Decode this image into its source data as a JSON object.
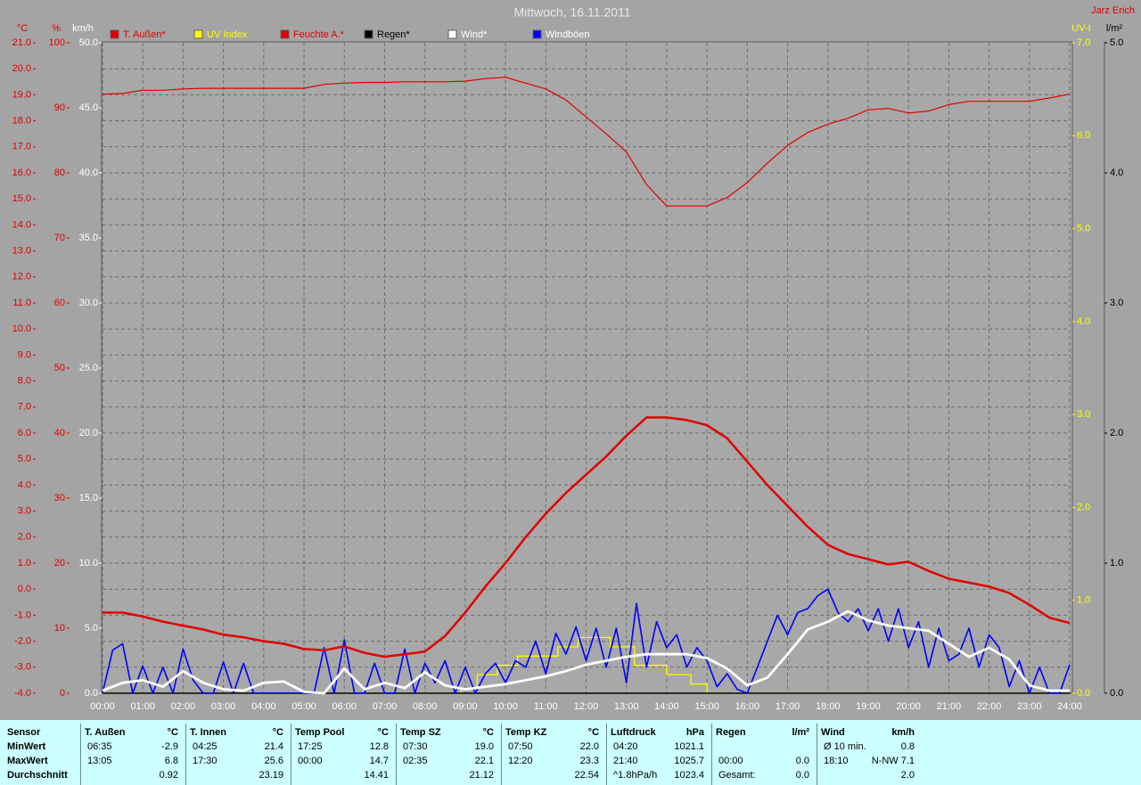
{
  "chart_data": {
    "type": "line",
    "title": "Mittwoch, 16.11.2011",
    "author": "Jarz Erich",
    "grid": true,
    "xlim": [
      0,
      24
    ],
    "xticks": [
      {
        "value": 0,
        "label": "00:00"
      },
      {
        "value": 1,
        "label": "01:00"
      },
      {
        "value": 2,
        "label": "02:00"
      },
      {
        "value": 3,
        "label": "03:00"
      },
      {
        "value": 4,
        "label": "04:00"
      },
      {
        "value": 5,
        "label": "05:00"
      },
      {
        "value": 6,
        "label": "06:00"
      },
      {
        "value": 7,
        "label": "07:00"
      },
      {
        "value": 8,
        "label": "08:00"
      },
      {
        "value": 9,
        "label": "09:00"
      },
      {
        "value": 10,
        "label": "10:00"
      },
      {
        "value": 11,
        "label": "11:00"
      },
      {
        "value": 12,
        "label": "12:00"
      },
      {
        "value": 13,
        "label": "13:00"
      },
      {
        "value": 14,
        "label": "14:00"
      },
      {
        "value": 15,
        "label": "15:00"
      },
      {
        "value": 16,
        "label": "16:00"
      },
      {
        "value": 17,
        "label": "17:00"
      },
      {
        "value": 18,
        "label": "18:00"
      },
      {
        "value": 19,
        "label": "19:00"
      },
      {
        "value": 20,
        "label": "20:00"
      },
      {
        "value": 21,
        "label": "21:00"
      },
      {
        "value": 22,
        "label": "22:00"
      },
      {
        "value": 23,
        "label": "23:00"
      },
      {
        "value": 24,
        "label": "24:00"
      }
    ],
    "axes": {
      "temp": {
        "label": "°C",
        "color": "#e00000",
        "lim": [
          -4,
          21
        ],
        "ticks": [
          {
            "value": -4,
            "label": "-4.0"
          },
          {
            "value": -3,
            "label": "-3.0"
          },
          {
            "value": -2,
            "label": "-2.0"
          },
          {
            "value": -1,
            "label": "-1.0"
          },
          {
            "value": 0,
            "label": "0.0"
          },
          {
            "value": 1,
            "label": "1.0"
          },
          {
            "value": 2,
            "label": "2.0"
          },
          {
            "value": 3,
            "label": "3.0"
          },
          {
            "value": 4,
            "label": "4.0"
          },
          {
            "value": 5,
            "label": "5.0"
          },
          {
            "value": 6,
            "label": "6.0"
          },
          {
            "value": 7,
            "label": "7.0"
          },
          {
            "value": 8,
            "label": "8.0"
          },
          {
            "value": 9,
            "label": "9.0"
          },
          {
            "value": 10,
            "label": "10.0"
          },
          {
            "value": 11,
            "label": "11.0"
          },
          {
            "value": 12,
            "label": "12.0"
          },
          {
            "value": 13,
            "label": "13.0"
          },
          {
            "value": 14,
            "label": "14.0"
          },
          {
            "value": 15,
            "label": "15.0"
          },
          {
            "value": 16,
            "label": "16.0"
          },
          {
            "value": 17,
            "label": "17.0"
          },
          {
            "value": 18,
            "label": "18.0"
          },
          {
            "value": 19,
            "label": "19.0"
          },
          {
            "value": 20,
            "label": "20.0"
          },
          {
            "value": 21,
            "label": "21.0"
          }
        ]
      },
      "hum": {
        "label": "%",
        "color": "#e00000",
        "lim": [
          0,
          100
        ],
        "ticks": [
          0,
          10,
          20,
          30,
          40,
          50,
          60,
          70,
          80,
          90,
          100
        ]
      },
      "wind": {
        "label": "km/h",
        "color": "#ffffff",
        "lim": [
          0,
          50
        ],
        "ticks": [
          {
            "value": 0,
            "label": "0.0"
          },
          {
            "value": 5,
            "label": "5.0"
          },
          {
            "value": 10,
            "label": "10.0"
          },
          {
            "value": 15,
            "label": "15.0"
          },
          {
            "value": 20,
            "label": "20.0"
          },
          {
            "value": 25,
            "label": "25.0"
          },
          {
            "value": 30,
            "label": "30.0"
          },
          {
            "value": 35,
            "label": "35.0"
          },
          {
            "value": 40,
            "label": "40.0"
          },
          {
            "value": 45,
            "label": "45.0"
          },
          {
            "value": 50,
            "label": "50.0"
          }
        ]
      },
      "uv": {
        "label": "UV-I",
        "color": "#ffff00",
        "lim": [
          0,
          7
        ],
        "ticks": [
          {
            "value": 0,
            "label": "0.0"
          },
          {
            "value": 1,
            "label": "1.0"
          },
          {
            "value": 2,
            "label": "2.0"
          },
          {
            "value": 3,
            "label": "3.0"
          },
          {
            "value": 4,
            "label": "4.0"
          },
          {
            "value": 5,
            "label": "5.0"
          },
          {
            "value": 6,
            "label": "6.0"
          },
          {
            "value": 7,
            "label": "7.0"
          }
        ]
      },
      "rain": {
        "label": "l/m²",
        "color": "#000000",
        "lim": [
          0,
          5
        ],
        "ticks": [
          {
            "value": 0,
            "label": "0.0"
          },
          {
            "value": 1,
            "label": "1.0"
          },
          {
            "value": 2,
            "label": "2.0"
          },
          {
            "value": 3,
            "label": "3.0"
          },
          {
            "value": 4,
            "label": "4.0"
          },
          {
            "value": 5,
            "label": "5.0"
          }
        ]
      }
    },
    "series": [
      {
        "name": "T. Außen*",
        "color": "#e00000",
        "label_color": "#e00000",
        "axis": "temp",
        "x": [
          0,
          0.5,
          1,
          1.5,
          2,
          2.5,
          3,
          3.5,
          4,
          4.5,
          5,
          5.5,
          6,
          6.5,
          7,
          7.5,
          8,
          8.5,
          9,
          9.5,
          10,
          10.5,
          11,
          11.5,
          12,
          12.5,
          13,
          13.5,
          14,
          14.5,
          15,
          15.5,
          16,
          16.5,
          17,
          17.5,
          18,
          18.5,
          19,
          19.5,
          20,
          20.5,
          21,
          21.5,
          22,
          22.5,
          23,
          23.5,
          24
        ],
        "values": [
          -0.9,
          -0.9,
          -1.05,
          -1.25,
          -1.4,
          -1.55,
          -1.75,
          -1.85,
          -2.0,
          -2.1,
          -2.3,
          -2.35,
          -2.2,
          -2.45,
          -2.6,
          -2.5,
          -2.4,
          -1.8,
          -0.9,
          0.1,
          1.0,
          2.0,
          2.9,
          3.7,
          4.4,
          5.1,
          5.9,
          6.6,
          6.6,
          6.5,
          6.3,
          5.8,
          4.9,
          4.0,
          3.2,
          2.4,
          1.7,
          1.35,
          1.15,
          0.95,
          1.05,
          0.7,
          0.4,
          0.25,
          0.1,
          -0.15,
          -0.6,
          -1.1,
          -1.3
        ]
      },
      {
        "name": "UV Index",
        "color": "#ffff00",
        "label_color": "#ffff00",
        "axis": "uv",
        "x": [
          0,
          8.9,
          8.9,
          9.3,
          9.3,
          9.8,
          9.8,
          10.3,
          10.3,
          11.3,
          11.3,
          11.8,
          11.8,
          12.6,
          12.6,
          13.2,
          13.2,
          14.0,
          14.0,
          14.6,
          14.6,
          15.0,
          15.0,
          24
        ],
        "values": [
          0,
          0,
          0.05,
          0.05,
          0.2,
          0.2,
          0.3,
          0.3,
          0.4,
          0.4,
          0.5,
          0.5,
          0.6,
          0.6,
          0.5,
          0.5,
          0.3,
          0.3,
          0.2,
          0.2,
          0.1,
          0.1,
          0,
          0
        ]
      },
      {
        "name": "Feuchte A.*",
        "color": "#e00000",
        "label_color": "#e00000",
        "axis": "hum",
        "x": [
          0,
          0.5,
          1,
          1.5,
          2,
          2.5,
          3,
          3.5,
          4,
          4.5,
          5,
          5.5,
          6,
          6.5,
          7,
          7.5,
          8,
          8.5,
          9,
          9.5,
          10,
          10.5,
          11,
          11.5,
          12,
          12.5,
          13,
          13.5,
          14,
          14.5,
          15,
          15.5,
          16,
          16.5,
          17,
          17.5,
          18,
          18.5,
          19,
          19.5,
          20,
          20.5,
          21,
          21.5,
          22,
          22.5,
          23,
          23.5,
          24
        ],
        "values": [
          92.1,
          92.2,
          92.7,
          92.7,
          92.9,
          93.0,
          93.0,
          93.0,
          93.0,
          93.0,
          93.0,
          93.6,
          93.8,
          93.9,
          93.9,
          94.0,
          94.0,
          94.0,
          94.1,
          94.5,
          94.7,
          93.8,
          92.9,
          91.2,
          88.6,
          86.0,
          83.2,
          78.2,
          74.9,
          74.9,
          74.9,
          76.2,
          78.5,
          81.5,
          84.2,
          86.2,
          87.5,
          88.4,
          89.7,
          89.9,
          89.2,
          89.5,
          90.5,
          91.0,
          91.0,
          91.0,
          91.0,
          91.5,
          92.1
        ]
      },
      {
        "name": "Regen*",
        "color": "#000000",
        "label_color": "#000000",
        "axis": "rain",
        "x": [
          0,
          24
        ],
        "values": [
          0,
          0
        ]
      },
      {
        "name": "Wind*",
        "color": "#ffffff",
        "label_color": "#ffffff",
        "axis": "wind",
        "x": [
          0,
          0.5,
          1,
          1.5,
          2,
          2.5,
          3,
          3.5,
          4,
          4.5,
          5,
          5.5,
          6,
          6.5,
          7,
          7.5,
          8,
          8.5,
          9,
          9.5,
          10,
          10.5,
          11,
          11.5,
          12,
          12.5,
          13,
          13.5,
          14,
          14.5,
          15,
          15.5,
          16,
          16.5,
          17,
          17.5,
          18,
          18.5,
          19,
          19.5,
          20,
          20.5,
          21,
          21.5,
          22,
          22.5,
          23,
          23.5,
          24
        ],
        "values": [
          0.2,
          0.8,
          1.0,
          0.5,
          1.7,
          0.8,
          0.3,
          0.2,
          0.8,
          0.9,
          0.1,
          0.0,
          1.9,
          0.3,
          0.8,
          0.4,
          1.6,
          0.6,
          0.3,
          0.5,
          0.7,
          1.0,
          1.3,
          1.7,
          2.2,
          2.5,
          2.8,
          3.0,
          3.0,
          3.0,
          2.7,
          1.9,
          0.6,
          1.2,
          3.0,
          4.9,
          5.5,
          6.3,
          5.6,
          5.2,
          5.0,
          4.8,
          3.8,
          2.8,
          3.5,
          2.6,
          0.6,
          0.2,
          0.2
        ]
      },
      {
        "name": "Windböen",
        "color": "#0000ff",
        "label_color": "#ffffff",
        "axis": "wind",
        "x": [
          0,
          0.25,
          0.5,
          0.75,
          1,
          1.25,
          1.5,
          1.75,
          2,
          2.25,
          2.5,
          2.75,
          3,
          3.25,
          3.5,
          3.75,
          4,
          4.25,
          4.5,
          4.75,
          5,
          5.25,
          5.5,
          5.75,
          6,
          6.25,
          6.5,
          6.75,
          7,
          7.25,
          7.5,
          7.75,
          8,
          8.25,
          8.5,
          8.75,
          9,
          9.25,
          9.5,
          9.75,
          10,
          10.25,
          10.5,
          10.75,
          11,
          11.25,
          11.5,
          11.75,
          12,
          12.25,
          12.5,
          12.75,
          13,
          13.25,
          13.5,
          13.75,
          14,
          14.25,
          14.5,
          14.75,
          15,
          15.25,
          15.5,
          15.75,
          16,
          16.25,
          16.5,
          16.75,
          17,
          17.25,
          17.5,
          17.75,
          18,
          18.25,
          18.5,
          18.75,
          19,
          19.25,
          19.5,
          19.75,
          20,
          20.25,
          20.5,
          20.75,
          21,
          21.25,
          21.5,
          21.75,
          22,
          22.25,
          22.5,
          22.75,
          23,
          23.25,
          23.5,
          23.75,
          24
        ],
        "values": [
          0,
          3.3,
          3.8,
          0,
          2.1,
          0,
          2.0,
          0,
          3.4,
          1.0,
          0,
          0,
          2.4,
          0,
          2.3,
          0,
          0,
          0,
          0,
          0,
          0,
          0,
          3.5,
          0,
          4.1,
          0,
          0,
          2.3,
          0,
          0,
          3.4,
          0,
          2.3,
          0.8,
          2.5,
          0,
          2.0,
          0,
          1.5,
          2.3,
          0.8,
          2.5,
          2.0,
          4.0,
          1.5,
          4.6,
          3.0,
          5.1,
          2.5,
          5.0,
          2.0,
          5.0,
          0.8,
          6.9,
          2.0,
          5.5,
          3.5,
          4.5,
          2.0,
          3.5,
          2.5,
          0.5,
          1.5,
          0.3,
          0,
          2.0,
          4.0,
          6.0,
          4.5,
          6.2,
          6.5,
          7.5,
          8.0,
          6.2,
          5.5,
          6.5,
          4.8,
          6.5,
          4.0,
          6.5,
          3.5,
          5.5,
          2.0,
          5.0,
          2.5,
          3.0,
          5.0,
          2.0,
          4.5,
          3.5,
          0.5,
          2.5,
          0,
          2.0,
          0,
          0,
          2.2
        ]
      }
    ]
  },
  "table": {
    "row_labels": [
      "Sensor",
      "MinWert",
      "MaxWert",
      "Durchschnitt"
    ],
    "groups": [
      {
        "name": "T. Außen",
        "unit": "°C",
        "rows": [
          [
            "06:35",
            "-2.9"
          ],
          [
            "13:05",
            "6.8"
          ],
          [
            null,
            "0.92"
          ]
        ]
      },
      {
        "name": "T. Innen",
        "unit": "°C",
        "rows": [
          [
            "04:25",
            "21.4"
          ],
          [
            "17:30",
            "25.6"
          ],
          [
            null,
            "23.19"
          ]
        ]
      },
      {
        "name": "Temp Pool",
        "unit": "°C",
        "rows": [
          [
            "17:25",
            "12.8"
          ],
          [
            "00:00",
            "14.7"
          ],
          [
            null,
            "14.41"
          ]
        ]
      },
      {
        "name": "Temp SZ",
        "unit": "°C",
        "rows": [
          [
            "07:30",
            "19.0"
          ],
          [
            "02:35",
            "22.1"
          ],
          [
            null,
            "21.12"
          ]
        ]
      },
      {
        "name": "Temp KZ",
        "unit": "°C",
        "rows": [
          [
            "07:50",
            "22.0"
          ],
          [
            "12:20",
            "23.3"
          ],
          [
            null,
            "22.54"
          ]
        ]
      },
      {
        "name": "Luftdruck",
        "unit": "hPa",
        "rows": [
          [
            "04:20",
            "1021.1"
          ],
          [
            "21:40",
            "1025.7"
          ],
          [
            "^1.8hPa/h",
            "1023.4"
          ]
        ]
      },
      {
        "name": "Regen",
        "unit": "l/m²",
        "rows": [
          [
            null,
            null
          ],
          [
            "00:00",
            "0.0"
          ],
          [
            "Gesamt:",
            "0.0"
          ]
        ]
      },
      {
        "name": "Wind",
        "unit": "km/h",
        "rows": [
          [
            "Ø 10 min.",
            "0.8"
          ],
          [
            "18:10",
            "N-NW 7.1"
          ],
          [
            null,
            "2.0"
          ]
        ]
      }
    ]
  }
}
